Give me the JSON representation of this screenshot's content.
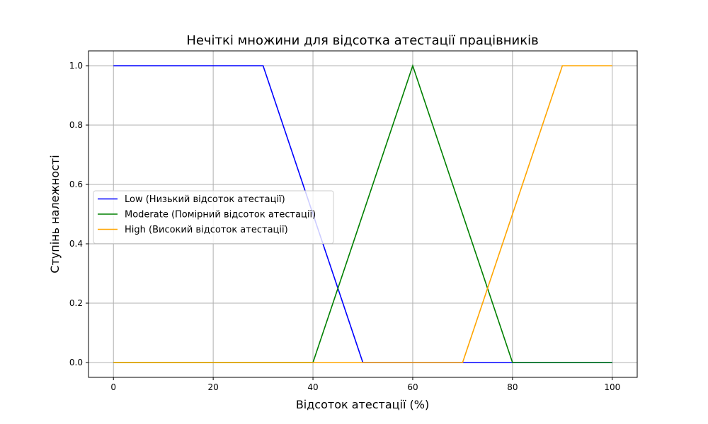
{
  "chart_data": {
    "type": "line",
    "title": "Нечіткі множини для відсотка атестації працівників",
    "xlabel": "Відсоток атестації (%)",
    "ylabel": "Ступінь належності",
    "xlim": [
      -5,
      105
    ],
    "ylim": [
      -0.05,
      1.05
    ],
    "x_ticks": [
      0,
      20,
      40,
      60,
      80,
      100
    ],
    "y_ticks": [
      0.0,
      0.2,
      0.4,
      0.6,
      0.8,
      1.0
    ],
    "x_tick_labels": [
      "0",
      "20",
      "40",
      "60",
      "80",
      "100"
    ],
    "y_tick_labels": [
      "0.0",
      "0.2",
      "0.4",
      "0.6",
      "0.8",
      "1.0"
    ],
    "grid": true,
    "legend_position": "center-left",
    "series": [
      {
        "name": "Low (Низький відсоток атестації)",
        "color": "#0000ff",
        "x": [
          0,
          30,
          50,
          100
        ],
        "y": [
          1,
          1,
          0,
          0
        ]
      },
      {
        "name": "Moderate (Помірний відсоток атестації)",
        "color": "#008000",
        "x": [
          0,
          40,
          60,
          80,
          100
        ],
        "y": [
          0,
          0,
          1,
          0,
          0
        ]
      },
      {
        "name": "High (Високий відсоток атестації)",
        "color": "#ffa500",
        "x": [
          0,
          70,
          90,
          100
        ],
        "y": [
          0,
          0,
          1,
          1
        ]
      }
    ]
  }
}
